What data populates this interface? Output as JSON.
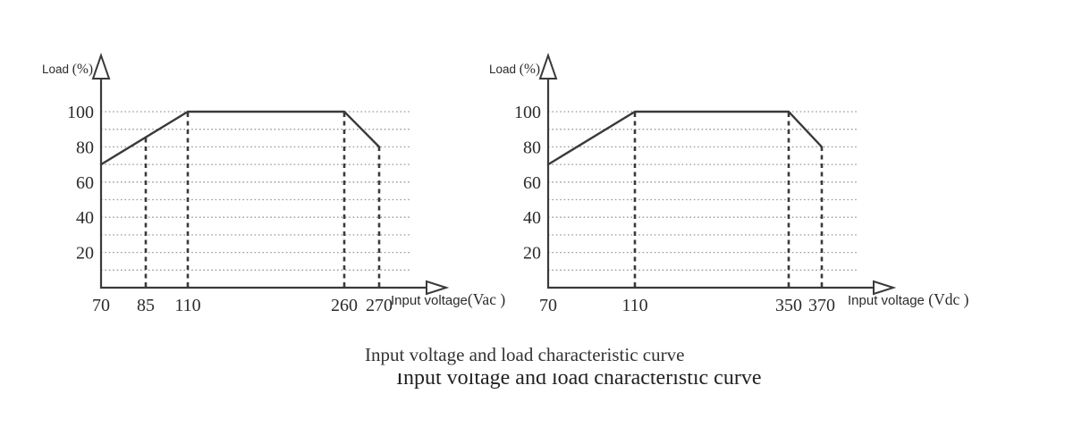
{
  "captions": {
    "primary": "Input voltage and load characteristic curve",
    "secondary": "Input voltage and load characteristic curve"
  },
  "colors": {
    "ink": "#3a3a3a",
    "grid": "#999999",
    "text": "#2b2b2b"
  },
  "chart_data": [
    {
      "type": "line",
      "title": "Input voltage and load characteristic curve",
      "ylabel": "Load (%)",
      "xlabel": "Input voltage",
      "x_unit": "(Vac )",
      "x_ticks": [
        70,
        85,
        110,
        260,
        270
      ],
      "y_ticks": [
        20,
        40,
        60,
        80,
        100
      ],
      "ylim": [
        0,
        110
      ],
      "grid": "dotted horizontal every 10%",
      "legend": "none",
      "series": [
        {
          "name": "load-vs-vac",
          "points": [
            [
              70,
              70
            ],
            [
              110,
              100
            ],
            [
              260,
              100
            ],
            [
              270,
              80
            ]
          ]
        }
      ],
      "guide_lines_x": [
        85,
        110,
        260,
        270
      ]
    },
    {
      "type": "line",
      "title": "Input voltage and load characteristic curve",
      "ylabel": "Load (%)",
      "xlabel": "Input voltage",
      "x_unit": " (Vdc )",
      "x_ticks": [
        70,
        110,
        350,
        370
      ],
      "y_ticks": [
        20,
        40,
        60,
        80,
        100
      ],
      "ylim": [
        0,
        110
      ],
      "grid": "dotted horizontal every 10%",
      "legend": "none",
      "series": [
        {
          "name": "load-vs-vdc",
          "points": [
            [
              70,
              70
            ],
            [
              110,
              100
            ],
            [
              350,
              100
            ],
            [
              370,
              80
            ]
          ]
        }
      ],
      "guide_lines_x": [
        110,
        350,
        370
      ]
    }
  ]
}
